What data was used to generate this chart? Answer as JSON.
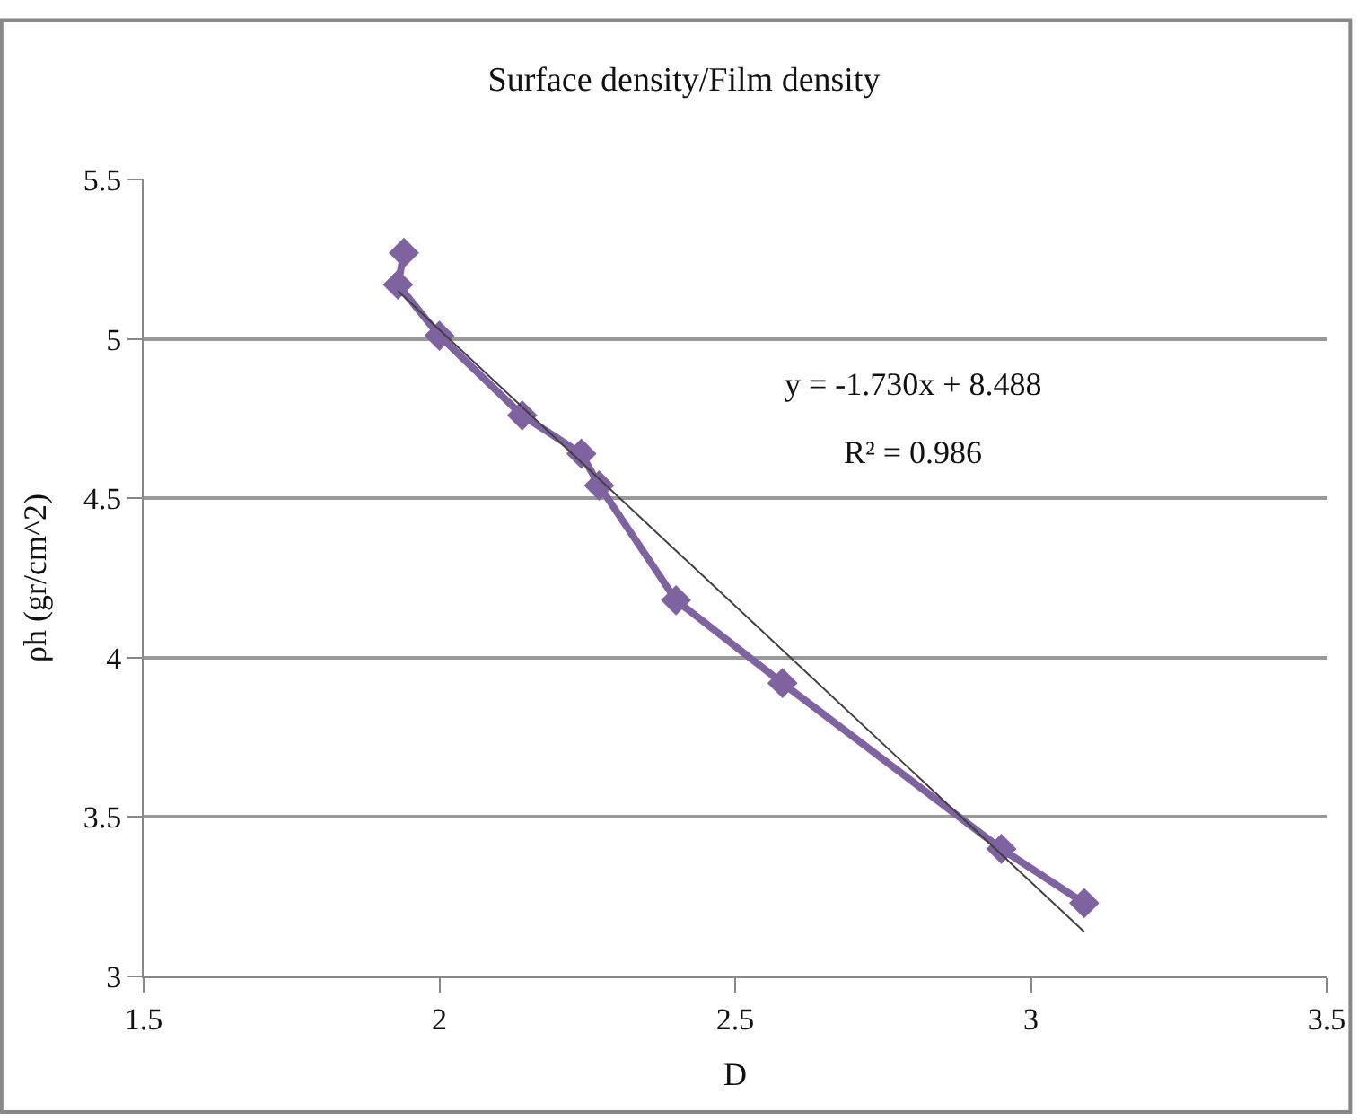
{
  "chart_data": {
    "type": "line",
    "title": "Surface density/Film density",
    "xlabel": "D",
    "ylabel": "ρh (gr/cm^2)",
    "xlim": [
      1.5,
      3.5
    ],
    "xticks": [
      1.5,
      2,
      2.5,
      3,
      3.5
    ],
    "ylim": [
      3,
      5.5
    ],
    "yticks": [
      3,
      3.5,
      4,
      4.5,
      5,
      5.5
    ],
    "grid": "y",
    "series": [
      {
        "color": "#7f63a0",
        "marker": "diamond",
        "line_style": "solid",
        "x": [
          1.94,
          1.93,
          2.0,
          2.14,
          2.24,
          2.27,
          2.4,
          2.58,
          2.95,
          3.09
        ],
        "values": [
          5.27,
          5.17,
          5.01,
          4.76,
          4.64,
          4.54,
          4.18,
          3.92,
          3.4,
          3.23
        ]
      },
      {
        "color": "#404040",
        "marker": "none",
        "line_style": "solid",
        "x": [
          1.93,
          3.09
        ],
        "values": [
          5.15,
          3.14
        ]
      }
    ],
    "annotations": [
      "y = -1.730x + 8.488",
      "R² = 0.986"
    ]
  }
}
